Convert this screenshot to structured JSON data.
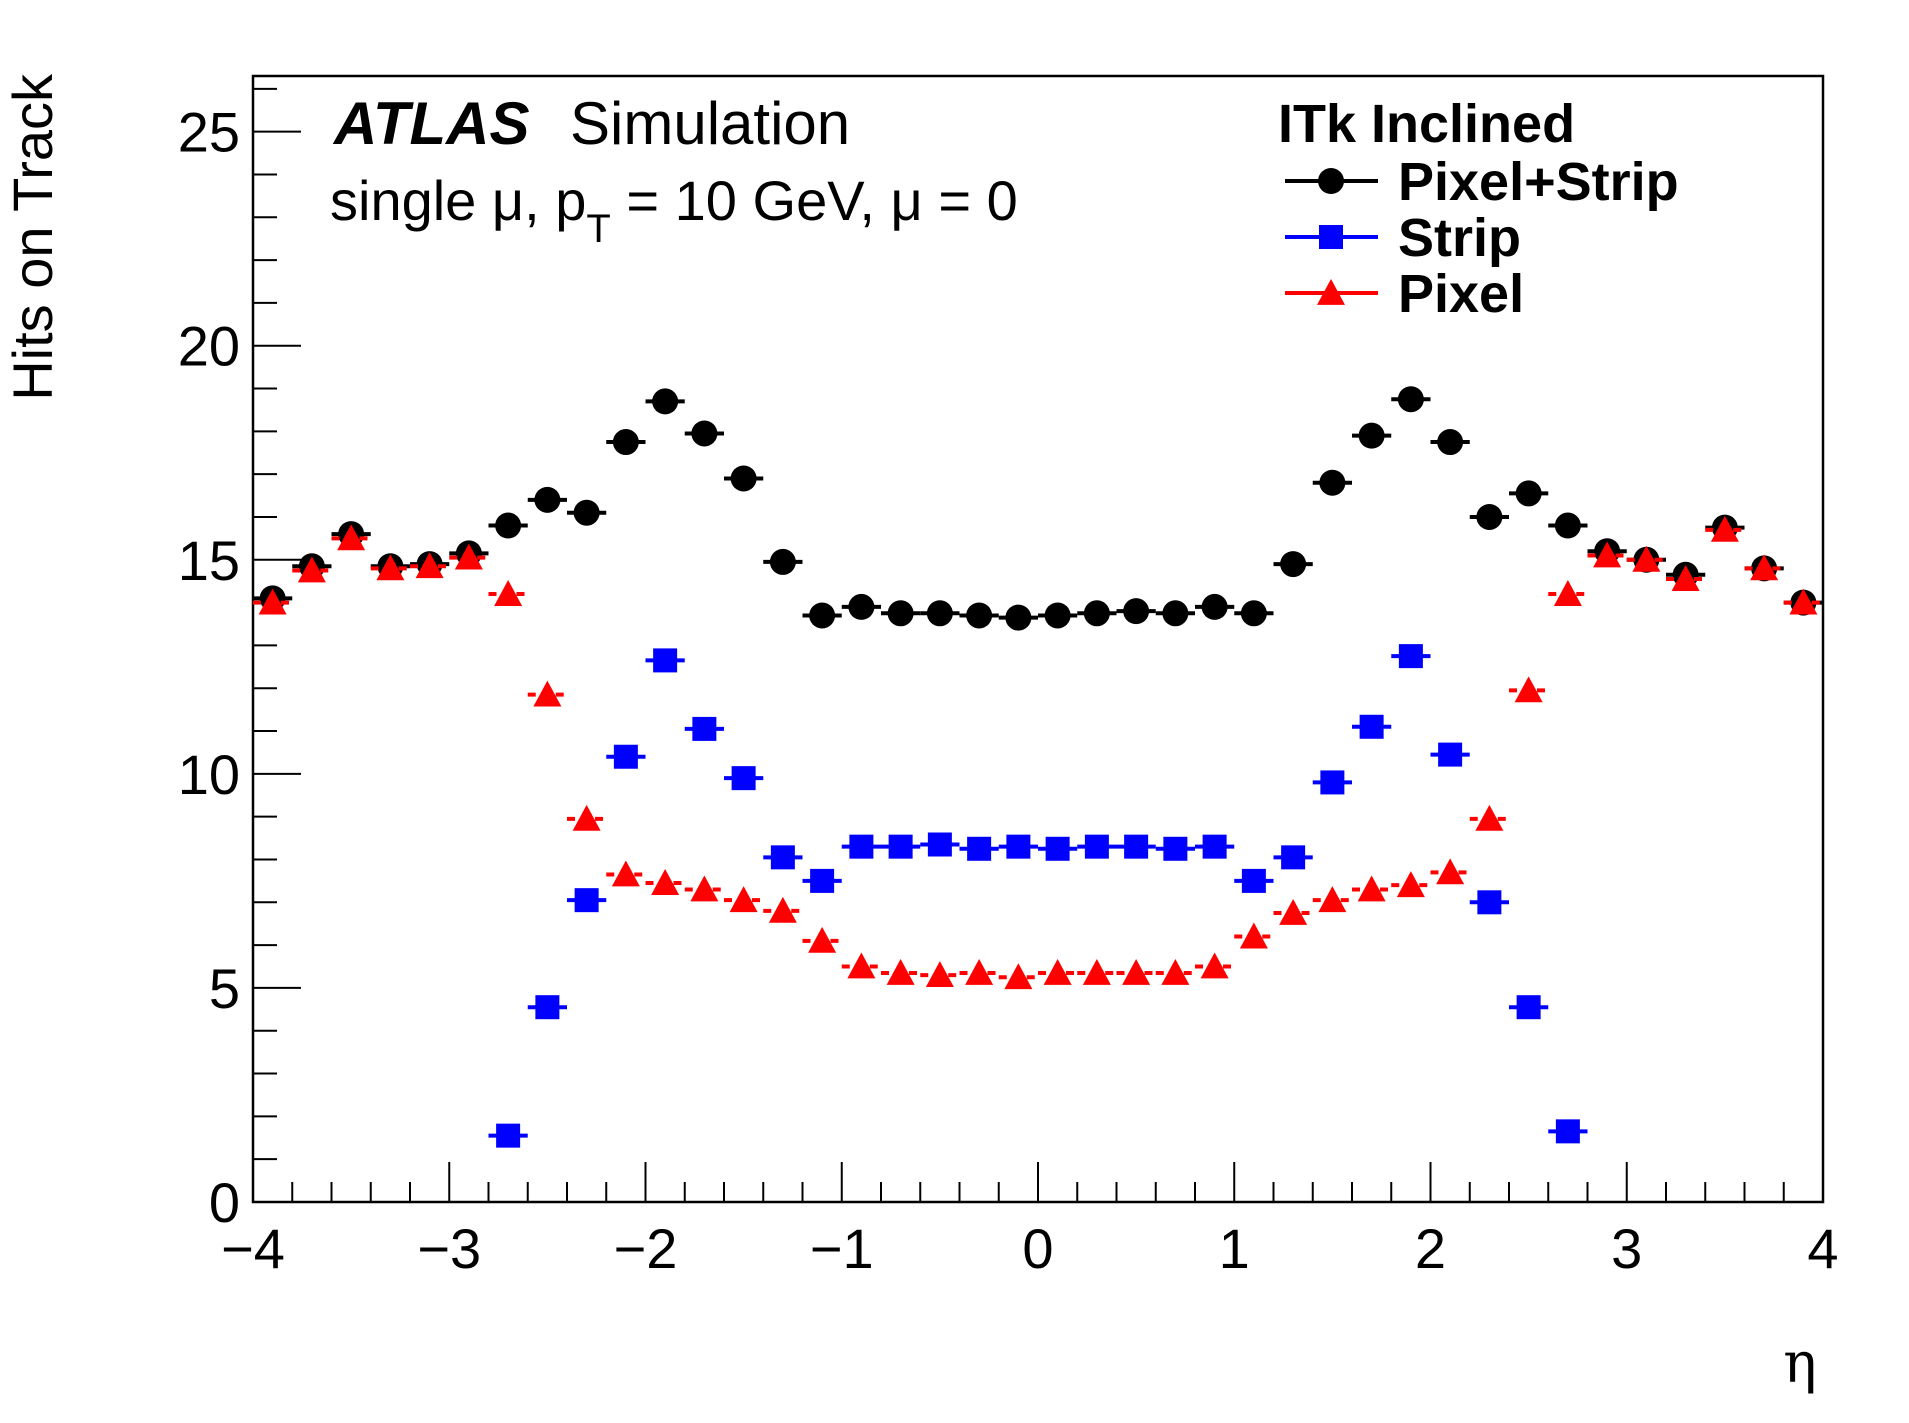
{
  "chart_data": {
    "type": "scatter",
    "title": "",
    "xlabel": "η",
    "ylabel": "Hits on Track",
    "xlim": [
      -4,
      4
    ],
    "ylim": [
      0,
      26.3
    ],
    "x_ticks": [
      -4,
      -3,
      -2,
      -1,
      0,
      1,
      2,
      3,
      4
    ],
    "x_tick_labels": [
      "−4",
      "−3",
      "−2",
      "−1",
      "0",
      "1",
      "2",
      "3",
      "4"
    ],
    "y_ticks": [
      0,
      5,
      10,
      15,
      20,
      25
    ],
    "y_tick_labels": [
      "0",
      "5",
      "10",
      "15",
      "20",
      "25"
    ],
    "bin_half_width": 0.1,
    "annotations": {
      "brand": "ATLAS",
      "simulation": "Simulation",
      "condition_prefix": "single μ, p",
      "condition_sub": "T",
      "condition_suffix": " = 10 GeV, μ = 0"
    },
    "legend": {
      "header": "ITk Inclined",
      "placement": "top-right"
    },
    "series": [
      {
        "name": "Pixel+Strip",
        "color": "#000000",
        "marker": "circle",
        "line": "solid",
        "x": [
          -3.9,
          -3.7,
          -3.5,
          -3.3,
          -3.1,
          -2.9,
          -2.7,
          -2.5,
          -2.3,
          -2.1,
          -1.9,
          -1.7,
          -1.5,
          -1.3,
          -1.1,
          -0.9,
          -0.7,
          -0.5,
          -0.3,
          -0.1,
          0.1,
          0.3,
          0.5,
          0.7,
          0.9,
          1.1,
          1.3,
          1.5,
          1.7,
          1.9,
          2.1,
          2.3,
          2.5,
          2.7,
          2.9,
          3.1,
          3.3,
          3.5,
          3.7,
          3.9
        ],
        "values": [
          14.1,
          14.85,
          15.6,
          14.85,
          14.9,
          15.15,
          15.8,
          16.4,
          16.1,
          17.75,
          18.7,
          17.95,
          16.9,
          14.95,
          13.7,
          13.9,
          13.75,
          13.75,
          13.7,
          13.65,
          13.7,
          13.75,
          13.8,
          13.75,
          13.9,
          13.75,
          14.9,
          16.8,
          17.9,
          18.75,
          17.75,
          16.0,
          16.55,
          15.8,
          15.2,
          15.0,
          14.65,
          15.75,
          14.8,
          14.0
        ]
      },
      {
        "name": "Strip",
        "color": "#0000ff",
        "marker": "square",
        "line": "solid",
        "x": [
          -2.7,
          -2.5,
          -2.3,
          -2.1,
          -1.9,
          -1.7,
          -1.5,
          -1.3,
          -1.1,
          -0.9,
          -0.7,
          -0.5,
          -0.3,
          -0.1,
          0.1,
          0.3,
          0.5,
          0.7,
          0.9,
          1.1,
          1.3,
          1.5,
          1.7,
          1.9,
          2.1,
          2.3,
          2.5,
          2.7
        ],
        "values": [
          1.55,
          4.55,
          7.05,
          10.4,
          12.65,
          11.05,
          9.9,
          8.05,
          7.5,
          8.3,
          8.3,
          8.35,
          8.25,
          8.3,
          8.25,
          8.3,
          8.3,
          8.25,
          8.3,
          7.5,
          8.05,
          9.8,
          11.1,
          12.75,
          10.45,
          7.0,
          4.55,
          1.65
        ]
      },
      {
        "name": "Pixel",
        "color": "#ff0000",
        "marker": "triangle",
        "line": "dashed",
        "x": [
          -3.9,
          -3.7,
          -3.5,
          -3.3,
          -3.1,
          -2.9,
          -2.7,
          -2.5,
          -2.3,
          -2.1,
          -1.9,
          -1.7,
          -1.5,
          -1.3,
          -1.1,
          -0.9,
          -0.7,
          -0.5,
          -0.3,
          -0.1,
          0.1,
          0.3,
          0.5,
          0.7,
          0.9,
          1.1,
          1.3,
          1.5,
          1.7,
          1.9,
          2.1,
          2.3,
          2.5,
          2.7,
          2.9,
          3.1,
          3.3,
          3.5,
          3.7,
          3.9
        ],
        "values": [
          14.0,
          14.75,
          15.5,
          14.8,
          14.85,
          15.05,
          14.2,
          11.85,
          8.95,
          7.65,
          7.45,
          7.3,
          7.05,
          6.8,
          6.1,
          5.5,
          5.35,
          5.3,
          5.35,
          5.25,
          5.35,
          5.35,
          5.35,
          5.35,
          5.5,
          6.2,
          6.75,
          7.05,
          7.3,
          7.4,
          7.7,
          8.95,
          11.95,
          14.2,
          15.1,
          15.0,
          14.55,
          15.7,
          14.8,
          14.0
        ]
      }
    ]
  }
}
